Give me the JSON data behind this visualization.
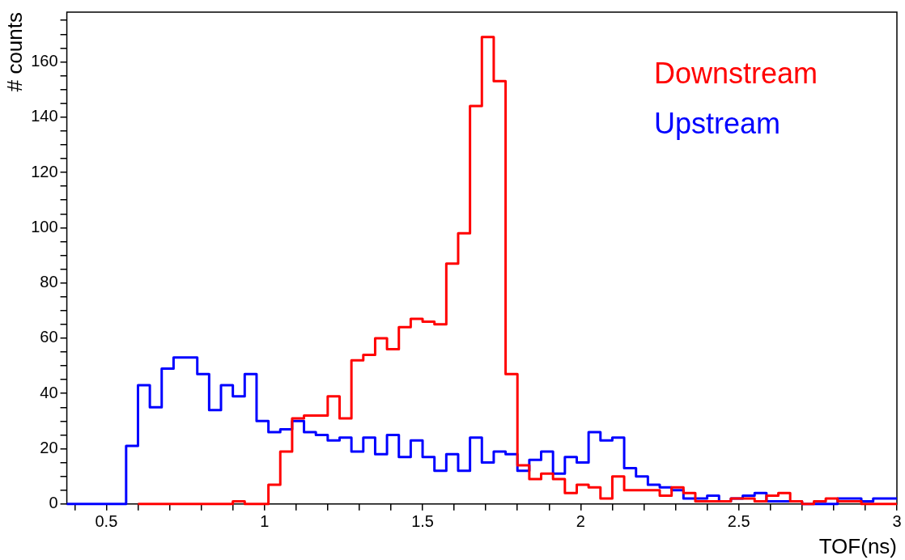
{
  "chart_data": {
    "type": "step",
    "xlabel": "TOF(ns)",
    "ylabel": "# counts",
    "x": [
      0.375,
      0.4125,
      0.45,
      0.4875,
      0.525,
      0.5625,
      0.6,
      0.6375,
      0.675,
      0.7125,
      0.75,
      0.7875,
      0.825,
      0.8625,
      0.9,
      0.9375,
      0.975,
      1.0125,
      1.05,
      1.0875,
      1.125,
      1.1625,
      1.2,
      1.2375,
      1.275,
      1.3125,
      1.35,
      1.3875,
      1.425,
      1.4625,
      1.5,
      1.5375,
      1.575,
      1.6125,
      1.65,
      1.6875,
      1.725,
      1.7625,
      1.8,
      1.8375,
      1.875,
      1.9125,
      1.95,
      1.9875,
      2.025,
      2.0625,
      2.1,
      2.1375,
      2.175,
      2.2125,
      2.25,
      2.2875,
      2.325,
      2.3625,
      2.4,
      2.4375,
      2.475,
      2.5125,
      2.55,
      2.5875,
      2.625,
      2.6625,
      2.7,
      2.7375,
      2.775,
      2.8125,
      2.85,
      2.8875,
      2.925,
      2.9625,
      3
    ],
    "series": [
      {
        "name": "Downstream",
        "color": "#ff0000",
        "values": [
          null,
          null,
          null,
          null,
          null,
          null,
          0,
          0,
          0,
          0,
          0,
          0,
          0,
          0,
          0,
          1,
          0,
          0,
          7,
          19,
          31,
          32,
          32,
          39,
          31,
          52,
          54,
          60,
          56,
          64,
          67,
          66,
          65,
          87,
          98,
          144,
          169,
          153,
          47,
          14,
          9,
          11,
          9,
          4,
          7,
          6,
          2,
          10,
          5,
          5,
          5,
          3,
          6,
          4,
          1,
          1,
          1,
          2,
          2,
          1,
          3,
          4,
          1,
          0,
          1,
          2,
          1,
          1,
          0,
          0,
          0
        ]
      },
      {
        "name": "Upstream",
        "color": "#0000ff",
        "values": [
          0,
          0,
          0,
          0,
          0,
          0,
          21,
          43,
          35,
          49,
          53,
          53,
          47,
          34,
          43,
          39,
          47,
          30,
          26,
          27,
          30,
          26,
          25,
          23,
          24,
          19,
          24,
          18,
          25,
          17,
          23,
          17,
          12,
          18,
          12,
          24,
          15,
          19,
          18,
          12,
          16,
          19,
          11,
          17,
          15,
          26,
          23,
          24,
          13,
          10,
          7,
          6,
          5,
          2,
          2,
          3,
          1,
          2,
          3,
          4,
          1,
          1,
          1,
          0,
          0,
          0,
          2,
          2,
          1,
          2,
          2
        ]
      }
    ],
    "xlim": [
      0.375,
      3
    ],
    "xticks": [
      {
        "value": 0.4,
        "label": null
      },
      0.5,
      {
        "value": 0.6,
        "label": null
      },
      {
        "value": 0.7,
        "label": null
      },
      {
        "value": 0.8,
        "label": null
      },
      {
        "value": 0.9,
        "label": null
      },
      1,
      {
        "value": 1.1,
        "label": null
      },
      {
        "value": 1.2,
        "label": null
      },
      {
        "value": 1.3,
        "label": null
      },
      {
        "value": 1.4,
        "label": null
      },
      1.5,
      {
        "value": 1.6,
        "label": null
      },
      {
        "value": 1.7,
        "label": null
      },
      {
        "value": 1.8,
        "label": null
      },
      {
        "value": 1.9,
        "label": null
      },
      2,
      {
        "value": 2.1,
        "label": null
      },
      {
        "value": 2.2,
        "label": null
      },
      {
        "value": 2.3,
        "label": null
      },
      {
        "value": 2.4,
        "label": null
      },
      2.5,
      {
        "value": 2.6,
        "label": null
      },
      {
        "value": 2.7,
        "label": null
      },
      {
        "value": 2.8,
        "label": null
      },
      {
        "value": 2.9,
        "label": null
      },
      3
    ],
    "ylim": [
      0,
      178
    ],
    "yticks": [
      0,
      {
        "value": 5,
        "label": null
      },
      {
        "value": 10,
        "label": null
      },
      {
        "value": 15,
        "label": null
      },
      20,
      {
        "value": 25,
        "label": null
      },
      {
        "value": 30,
        "label": null
      },
      {
        "value": 35,
        "label": null
      },
      40,
      {
        "value": 45,
        "label": null
      },
      {
        "value": 50,
        "label": null
      },
      {
        "value": 55,
        "label": null
      },
      60,
      {
        "value": 65,
        "label": null
      },
      {
        "value": 70,
        "label": null
      },
      {
        "value": 75,
        "label": null
      },
      80,
      {
        "value": 85,
        "label": null
      },
      {
        "value": 90,
        "label": null
      },
      {
        "value": 95,
        "label": null
      },
      100,
      {
        "value": 105,
        "label": null
      },
      {
        "value": 110,
        "label": null
      },
      {
        "value": 115,
        "label": null
      },
      120,
      {
        "value": 125,
        "label": null
      },
      {
        "value": 130,
        "label": null
      },
      {
        "value": 135,
        "label": null
      },
      140,
      {
        "value": 145,
        "label": null
      },
      {
        "value": 150,
        "label": null
      },
      {
        "value": 155,
        "label": null
      },
      160,
      {
        "value": 165,
        "label": null
      },
      {
        "value": 170,
        "label": null
      },
      {
        "value": 175,
        "label": null
      }
    ],
    "legend": "top right",
    "grid": false
  }
}
